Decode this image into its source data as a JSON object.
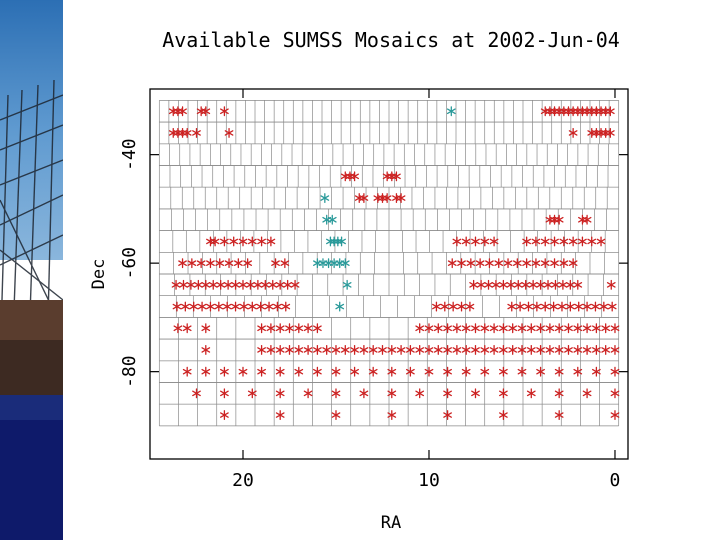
{
  "chart_data": {
    "type": "scatter",
    "title": "Available SUMSS Mosaics at 2002-Jun-04",
    "xlabel": "RA",
    "ylabel": "Dec",
    "xlim": [
      25.0,
      -0.7
    ],
    "ylim": [
      -96.1,
      -27.9
    ],
    "x_ticks": [
      20,
      10,
      0
    ],
    "x_tick_labels": [
      "20",
      "10",
      "0"
    ],
    "y_ticks": [
      -40,
      -60,
      -80
    ],
    "y_tick_labels": [
      "-40",
      "-60",
      "-80"
    ],
    "grid_rows": [
      {
        "dec": -32,
        "cells": 48
      },
      {
        "dec": -36,
        "cells": 48
      },
      {
        "dec": -40,
        "cells": 45
      },
      {
        "dec": -44,
        "cells": 43
      },
      {
        "dec": -48,
        "cells": 40
      },
      {
        "dec": -52,
        "cells": 38
      },
      {
        "dec": -56,
        "cells": 34
      },
      {
        "dec": -60,
        "cells": 32
      },
      {
        "dec": -64,
        "cells": 30
      },
      {
        "dec": -68,
        "cells": 27
      },
      {
        "dec": -72,
        "cells": 24
      },
      {
        "dec": -76,
        "cells": 24
      },
      {
        "dec": -80,
        "cells": 24
      },
      {
        "dec": -84,
        "cells": 24
      },
      {
        "dec": -88,
        "cells": 24
      }
    ],
    "series": [
      {
        "name": "available",
        "color": "#cc2222",
        "marker": "*",
        "points": [
          [
            23.75,
            -32
          ],
          [
            23.5,
            -32
          ],
          [
            23.25,
            -32
          ],
          [
            22.25,
            -32
          ],
          [
            22.0,
            -32
          ],
          [
            21.0,
            -32
          ],
          [
            3.75,
            -32
          ],
          [
            3.5,
            -32
          ],
          [
            3.25,
            -32
          ],
          [
            3.0,
            -32
          ],
          [
            2.75,
            -32
          ],
          [
            2.5,
            -32
          ],
          [
            2.25,
            -32
          ],
          [
            2.0,
            -32
          ],
          [
            1.75,
            -32
          ],
          [
            1.5,
            -32
          ],
          [
            1.25,
            -32
          ],
          [
            1.0,
            -32
          ],
          [
            0.75,
            -32
          ],
          [
            0.5,
            -32
          ],
          [
            0.25,
            -32
          ],
          [
            23.75,
            -36
          ],
          [
            23.5,
            -36
          ],
          [
            23.25,
            -36
          ],
          [
            23.0,
            -36
          ],
          [
            22.5,
            -36
          ],
          [
            20.75,
            -36
          ],
          [
            2.25,
            -36
          ],
          [
            1.25,
            -36
          ],
          [
            1.0,
            -36
          ],
          [
            0.75,
            -36
          ],
          [
            0.5,
            -36
          ],
          [
            0.25,
            -36
          ],
          [
            14.5,
            -44
          ],
          [
            14.25,
            -44
          ],
          [
            14.0,
            -44
          ],
          [
            12.25,
            -44
          ],
          [
            12.0,
            -44
          ],
          [
            11.75,
            -44
          ],
          [
            13.75,
            -48
          ],
          [
            13.5,
            -48
          ],
          [
            12.75,
            -48
          ],
          [
            12.5,
            -48
          ],
          [
            12.25,
            -48
          ],
          [
            11.75,
            -48
          ],
          [
            11.5,
            -48
          ],
          [
            3.5,
            -52
          ],
          [
            3.25,
            -52
          ],
          [
            3.0,
            -52
          ],
          [
            1.75,
            -52
          ],
          [
            1.5,
            -52
          ],
          [
            21.75,
            -56
          ],
          [
            21.5,
            -56
          ],
          [
            21.0,
            -56
          ],
          [
            20.5,
            -56
          ],
          [
            20.0,
            -56
          ],
          [
            19.5,
            -56
          ],
          [
            19.0,
            -56
          ],
          [
            18.5,
            -56
          ],
          [
            8.5,
            -56
          ],
          [
            8.0,
            -56
          ],
          [
            7.5,
            -56
          ],
          [
            7.0,
            -56
          ],
          [
            6.5,
            -56
          ],
          [
            4.75,
            -56
          ],
          [
            4.25,
            -56
          ],
          [
            3.75,
            -56
          ],
          [
            3.25,
            -56
          ],
          [
            2.75,
            -56
          ],
          [
            2.25,
            -56
          ],
          [
            1.75,
            -56
          ],
          [
            1.25,
            -56
          ],
          [
            0.75,
            -56
          ],
          [
            23.25,
            -60
          ],
          [
            22.75,
            -60
          ],
          [
            22.25,
            -60
          ],
          [
            21.75,
            -60
          ],
          [
            21.25,
            -60
          ],
          [
            20.75,
            -60
          ],
          [
            20.25,
            -60
          ],
          [
            19.75,
            -60
          ],
          [
            18.25,
            -60
          ],
          [
            17.75,
            -60
          ],
          [
            8.75,
            -60
          ],
          [
            8.25,
            -60
          ],
          [
            7.75,
            -60
          ],
          [
            7.25,
            -60
          ],
          [
            6.75,
            -60
          ],
          [
            6.25,
            -60
          ],
          [
            5.75,
            -60
          ],
          [
            5.25,
            -60
          ],
          [
            4.75,
            -60
          ],
          [
            4.25,
            -60
          ],
          [
            3.75,
            -60
          ],
          [
            3.25,
            -60
          ],
          [
            2.75,
            -60
          ],
          [
            2.25,
            -60
          ],
          [
            23.6,
            -64
          ],
          [
            23.2,
            -64
          ],
          [
            22.8,
            -64
          ],
          [
            22.4,
            -64
          ],
          [
            22.0,
            -64
          ],
          [
            21.6,
            -64
          ],
          [
            21.2,
            -64
          ],
          [
            20.8,
            -64
          ],
          [
            20.4,
            -64
          ],
          [
            20.0,
            -64
          ],
          [
            19.6,
            -64
          ],
          [
            19.2,
            -64
          ],
          [
            18.8,
            -64
          ],
          [
            18.4,
            -64
          ],
          [
            18.0,
            -64
          ],
          [
            17.6,
            -64
          ],
          [
            17.2,
            -64
          ],
          [
            7.6,
            -64
          ],
          [
            7.2,
            -64
          ],
          [
            6.8,
            -64
          ],
          [
            6.4,
            -64
          ],
          [
            6.0,
            -64
          ],
          [
            5.6,
            -64
          ],
          [
            5.2,
            -64
          ],
          [
            4.8,
            -64
          ],
          [
            4.4,
            -64
          ],
          [
            4.0,
            -64
          ],
          [
            3.6,
            -64
          ],
          [
            3.2,
            -64
          ],
          [
            2.8,
            -64
          ],
          [
            2.4,
            -64
          ],
          [
            2.0,
            -64
          ],
          [
            0.2,
            -64
          ],
          [
            23.55,
            -68
          ],
          [
            23.1,
            -68
          ],
          [
            22.65,
            -68
          ],
          [
            22.2,
            -68
          ],
          [
            21.75,
            -68
          ],
          [
            21.3,
            -68
          ],
          [
            20.85,
            -68
          ],
          [
            20.4,
            -68
          ],
          [
            19.95,
            -68
          ],
          [
            19.5,
            -68
          ],
          [
            19.05,
            -68
          ],
          [
            18.6,
            -68
          ],
          [
            18.15,
            -68
          ],
          [
            17.7,
            -68
          ],
          [
            9.6,
            -68
          ],
          [
            9.15,
            -68
          ],
          [
            8.7,
            -68
          ],
          [
            8.25,
            -68
          ],
          [
            7.8,
            -68
          ],
          [
            5.55,
            -68
          ],
          [
            5.1,
            -68
          ],
          [
            4.65,
            -68
          ],
          [
            4.2,
            -68
          ],
          [
            3.75,
            -68
          ],
          [
            3.3,
            -68
          ],
          [
            2.85,
            -68
          ],
          [
            2.4,
            -68
          ],
          [
            1.95,
            -68
          ],
          [
            1.5,
            -68
          ],
          [
            1.05,
            -68
          ],
          [
            0.6,
            -68
          ],
          [
            0.15,
            -68
          ],
          [
            23.5,
            -72
          ],
          [
            23.0,
            -72
          ],
          [
            22.0,
            -72
          ],
          [
            19.0,
            -72
          ],
          [
            18.5,
            -72
          ],
          [
            18.0,
            -72
          ],
          [
            17.5,
            -72
          ],
          [
            17.0,
            -72
          ],
          [
            16.5,
            -72
          ],
          [
            16.0,
            -72
          ],
          [
            10.5,
            -72
          ],
          [
            10.0,
            -72
          ],
          [
            9.5,
            -72
          ],
          [
            9.0,
            -72
          ],
          [
            8.5,
            -72
          ],
          [
            8.0,
            -72
          ],
          [
            7.5,
            -72
          ],
          [
            7.0,
            -72
          ],
          [
            6.5,
            -72
          ],
          [
            6.0,
            -72
          ],
          [
            5.5,
            -72
          ],
          [
            5.0,
            -72
          ],
          [
            4.5,
            -72
          ],
          [
            4.0,
            -72
          ],
          [
            3.5,
            -72
          ],
          [
            3.0,
            -72
          ],
          [
            2.5,
            -72
          ],
          [
            2.0,
            -72
          ],
          [
            1.5,
            -72
          ],
          [
            1.0,
            -72
          ],
          [
            0.5,
            -72
          ],
          [
            0.0,
            -72
          ],
          [
            22.0,
            -76
          ],
          [
            19.0,
            -76
          ],
          [
            18.5,
            -76
          ],
          [
            18.0,
            -76
          ],
          [
            17.5,
            -76
          ],
          [
            17.0,
            -76
          ],
          [
            16.5,
            -76
          ],
          [
            16.0,
            -76
          ],
          [
            15.5,
            -76
          ],
          [
            15.0,
            -76
          ],
          [
            14.5,
            -76
          ],
          [
            14.0,
            -76
          ],
          [
            13.5,
            -76
          ],
          [
            13.0,
            -76
          ],
          [
            12.5,
            -76
          ],
          [
            12.0,
            -76
          ],
          [
            11.5,
            -76
          ],
          [
            11.0,
            -76
          ],
          [
            10.5,
            -76
          ],
          [
            10.0,
            -76
          ],
          [
            9.5,
            -76
          ],
          [
            9.0,
            -76
          ],
          [
            8.5,
            -76
          ],
          [
            8.0,
            -76
          ],
          [
            7.5,
            -76
          ],
          [
            7.0,
            -76
          ],
          [
            6.5,
            -76
          ],
          [
            6.0,
            -76
          ],
          [
            5.5,
            -76
          ],
          [
            5.0,
            -76
          ],
          [
            4.5,
            -76
          ],
          [
            4.0,
            -76
          ],
          [
            3.5,
            -76
          ],
          [
            3.0,
            -76
          ],
          [
            2.5,
            -76
          ],
          [
            2.0,
            -76
          ],
          [
            1.5,
            -76
          ],
          [
            1.0,
            -76
          ],
          [
            0.5,
            -76
          ],
          [
            0.0,
            -76
          ],
          [
            23.0,
            -80
          ],
          [
            22.0,
            -80
          ],
          [
            21.0,
            -80
          ],
          [
            20.0,
            -80
          ],
          [
            19.0,
            -80
          ],
          [
            18.0,
            -80
          ],
          [
            17.0,
            -80
          ],
          [
            16.0,
            -80
          ],
          [
            15.0,
            -80
          ],
          [
            14.0,
            -80
          ],
          [
            13.0,
            -80
          ],
          [
            12.0,
            -80
          ],
          [
            11.0,
            -80
          ],
          [
            10.0,
            -80
          ],
          [
            9.0,
            -80
          ],
          [
            8.0,
            -80
          ],
          [
            7.0,
            -80
          ],
          [
            6.0,
            -80
          ],
          [
            5.0,
            -80
          ],
          [
            4.0,
            -80
          ],
          [
            3.0,
            -80
          ],
          [
            2.0,
            -80
          ],
          [
            1.0,
            -80
          ],
          [
            0.0,
            -80
          ],
          [
            22.5,
            -84
          ],
          [
            21.0,
            -84
          ],
          [
            19.5,
            -84
          ],
          [
            18.0,
            -84
          ],
          [
            16.5,
            -84
          ],
          [
            15.0,
            -84
          ],
          [
            13.5,
            -84
          ],
          [
            12.0,
            -84
          ],
          [
            10.5,
            -84
          ],
          [
            9.0,
            -84
          ],
          [
            7.5,
            -84
          ],
          [
            6.0,
            -84
          ],
          [
            4.5,
            -84
          ],
          [
            3.0,
            -84
          ],
          [
            1.5,
            -84
          ],
          [
            0.0,
            -84
          ],
          [
            21.0,
            -88
          ],
          [
            18.0,
            -88
          ],
          [
            15.0,
            -88
          ],
          [
            12.0,
            -88
          ],
          [
            9.0,
            -88
          ],
          [
            6.0,
            -88
          ],
          [
            3.0,
            -88
          ],
          [
            0.0,
            -88
          ]
        ]
      },
      {
        "name": "other",
        "color": "#2a9a9a",
        "marker": "*",
        "points": [
          [
            8.8,
            -32
          ],
          [
            15.6,
            -48
          ],
          [
            15.5,
            -52
          ],
          [
            15.2,
            -52
          ],
          [
            15.3,
            -56
          ],
          [
            15.1,
            -56
          ],
          [
            14.9,
            -56
          ],
          [
            14.7,
            -56
          ],
          [
            16.0,
            -60
          ],
          [
            15.7,
            -60
          ],
          [
            15.4,
            -60
          ],
          [
            15.1,
            -60
          ],
          [
            14.8,
            -60
          ],
          [
            14.5,
            -60
          ],
          [
            14.4,
            -64
          ],
          [
            14.8,
            -68
          ]
        ]
      }
    ]
  }
}
